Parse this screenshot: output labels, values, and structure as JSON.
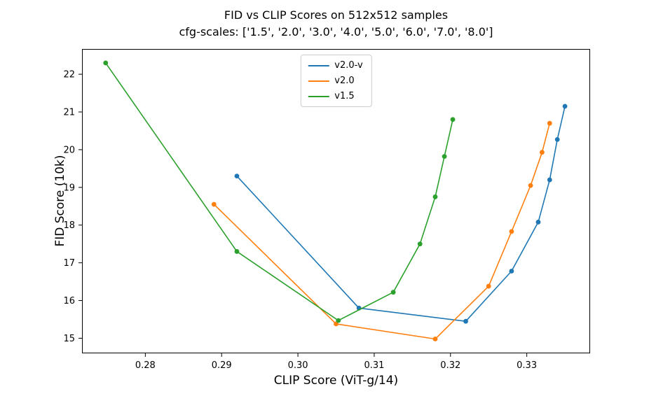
{
  "chart_data": {
    "type": "line",
    "title": "FID vs CLIP Scores on 512x512 samples",
    "subtitle": "cfg-scales: ['1.5', '2.0', '3.0', '4.0', '5.0', '6.0', '7.0', '8.0']",
    "xlabel": "CLIP Score (ViT-g/14)",
    "ylabel": "FID Score (10k)",
    "xlim": [
      0.2717,
      0.3383
    ],
    "ylim": [
      14.6,
      22.67
    ],
    "x_tick_labels": [
      "0.28",
      "0.29",
      "0.30",
      "0.31",
      "0.32",
      "0.33"
    ],
    "x_ticks": [
      0.28,
      0.29,
      0.3,
      0.31,
      0.32,
      0.33
    ],
    "y_ticks": [
      15,
      16,
      17,
      18,
      19,
      20,
      21,
      22
    ],
    "grid": false,
    "legend_position": "upper center",
    "series": [
      {
        "name": "v2.0-v",
        "color": "#1f77b4",
        "points": [
          [
            0.292,
            19.3
          ],
          [
            0.308,
            15.8
          ],
          [
            0.322,
            15.45
          ],
          [
            0.328,
            16.78
          ],
          [
            0.3315,
            18.08
          ],
          [
            0.333,
            19.2
          ],
          [
            0.334,
            20.27
          ],
          [
            0.335,
            21.15
          ]
        ]
      },
      {
        "name": "v2.0",
        "color": "#ff7f0e",
        "points": [
          [
            0.289,
            18.55
          ],
          [
            0.305,
            15.38
          ],
          [
            0.318,
            14.98
          ],
          [
            0.325,
            16.38
          ],
          [
            0.328,
            17.83
          ],
          [
            0.3305,
            19.05
          ],
          [
            0.332,
            19.93
          ],
          [
            0.333,
            20.7
          ]
        ]
      },
      {
        "name": "v1.5",
        "color": "#2ca02c",
        "points": [
          [
            0.2748,
            22.3
          ],
          [
            0.292,
            17.3
          ],
          [
            0.3053,
            15.47
          ],
          [
            0.3125,
            16.22
          ],
          [
            0.316,
            17.5
          ],
          [
            0.318,
            18.75
          ],
          [
            0.3192,
            19.82
          ],
          [
            0.3203,
            20.8
          ]
        ]
      }
    ]
  }
}
